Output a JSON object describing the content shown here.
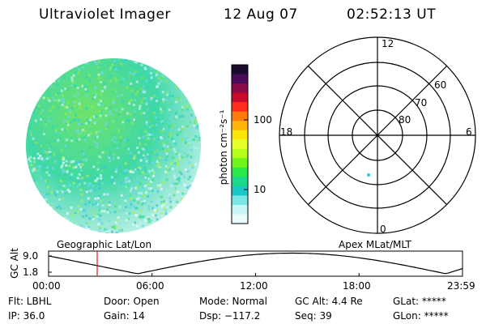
{
  "header": {
    "title": "Ultraviolet Imager",
    "date": "12 Aug 07",
    "time": "02:52:13 UT"
  },
  "colorbar": {
    "unit_label": "photon cm⁻²s⁻¹",
    "tick_100": "100",
    "tick_10": "10",
    "colors": [
      "#1a0a2e",
      "#4a0a5a",
      "#8a0a4a",
      "#c80a28",
      "#ff2d1a",
      "#ff7a0a",
      "#ffb50a",
      "#ffe60a",
      "#e8ff2a",
      "#b4ff1a",
      "#6ef51a",
      "#2ae84a",
      "#1ad88c",
      "#1ac8c8",
      "#7ae6e6",
      "#c8f5f5",
      "#e8fafa"
    ]
  },
  "polar": {
    "mlt_12": "12",
    "mlt_18": "18",
    "mlt_6": "6",
    "mlt_0": "0",
    "lat_60": "60",
    "lat_70": "70",
    "lat_80": "80",
    "marker_color": "#2ec8d8"
  },
  "image_panel": {
    "label": "Geographic Lat/Lon"
  },
  "altitude_panel": {
    "right_label": "Apex MLat/MLT",
    "y_axis_label": "GC Alt",
    "y_max": "9.0",
    "y_min": "1.8",
    "x_ticks": [
      "00:00",
      "06:00",
      "12:00",
      "18:00",
      "23:59"
    ],
    "current_time_color": "#d02020"
  },
  "footer": {
    "col1": [
      "Flt: LBHL",
      "IP: 36.0"
    ],
    "col2": [
      "Door: Open",
      "Gain: 14"
    ],
    "col3": [
      "Mode: Normal",
      "Dsp: −117.2"
    ],
    "col4": [
      "GC Alt: 4.4 Re",
      "Seq: 39"
    ],
    "col5": [
      "GLat: *****",
      "GLon: *****"
    ]
  }
}
